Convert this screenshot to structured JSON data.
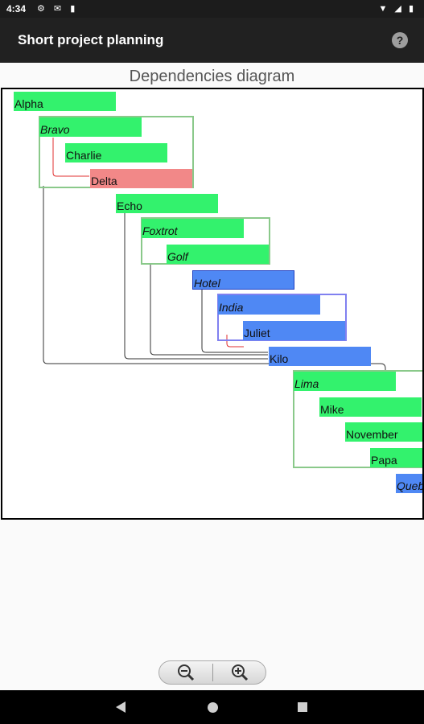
{
  "status_bar": {
    "time": "4:34",
    "left_icons": "⚙ ✉ ▮",
    "right_icons": "▼ ◢ ▮"
  },
  "app_bar": {
    "title": "Short project planning",
    "help_label": "?"
  },
  "diagram": {
    "title": "Dependencies diagram",
    "tasks": {
      "alpha": "Alpha",
      "bravo": "Bravo",
      "charlie": "Charlie",
      "delta": "Delta",
      "echo": "Echo",
      "foxtrot": "Foxtrot",
      "golf": "Golf",
      "hotel": "Hotel",
      "india": "India",
      "juliet": "Juliet",
      "kilo": "Kilo",
      "lima": "Lima",
      "mike": "Mike",
      "november": "November",
      "papa": "Papa",
      "quebec": "Quebec"
    },
    "colors": {
      "normal": "#33f26d",
      "critical": "#f28888",
      "milestone": "#4f88f4"
    }
  },
  "zoom": {
    "out_icon": "zoom-out-icon",
    "in_icon": "zoom-in-icon"
  },
  "nav_bar": {
    "back": "back",
    "home": "home",
    "recent": "recent"
  }
}
